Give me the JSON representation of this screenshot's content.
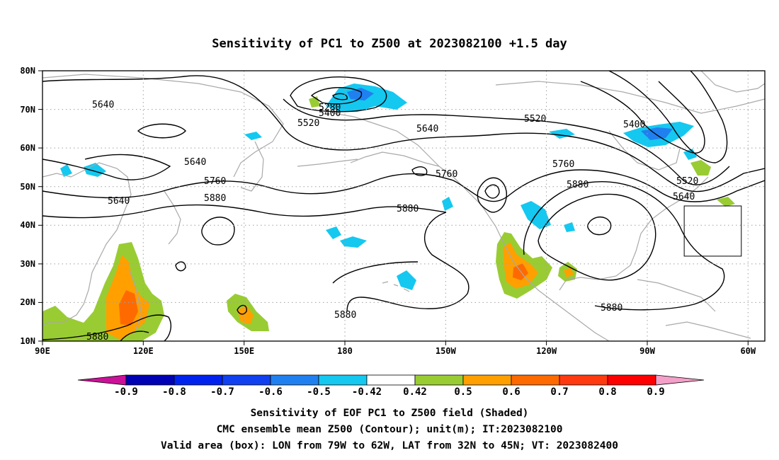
{
  "title": "Sensitivity of PC1 to Z500 at 2023082100 +1.5 day",
  "map": {
    "lat_labels": [
      "80N",
      "70N",
      "60N",
      "50N",
      "40N",
      "30N",
      "20N",
      "10N"
    ],
    "lon_labels": [
      "90E",
      "120E",
      "150E",
      "180",
      "150W",
      "120W",
      "90W",
      "60W"
    ],
    "lat_range": [
      10,
      80
    ],
    "lon_range": [
      90,
      305
    ],
    "valid_box": {
      "lon_min": -79,
      "lon_max": -62,
      "lat_min": 32,
      "lat_max": 45
    },
    "contour_labels": [
      "5640",
      "5280",
      "5400",
      "5520",
      "5640",
      "5520",
      "5400",
      "5640",
      "5760",
      "5640",
      "5880",
      "5760",
      "5880",
      "5880",
      "5760",
      "5880",
      "5520",
      "5640",
      "5880",
      "5880"
    ]
  },
  "colorbar": {
    "labels": [
      "-0.9",
      "-0.8",
      "-0.7",
      "-0.6",
      "-0.5",
      "-0.42",
      "0.42",
      "0.5",
      "0.6",
      "0.7",
      "0.8",
      "0.9"
    ],
    "colors": [
      "#cc1199",
      "#0000b4",
      "#0022ee",
      "#1040f0",
      "#2080f0",
      "#14c8f0",
      "#ffffff",
      "#99cc33",
      "#ffa000",
      "#ff6a00",
      "#ff3a10",
      "#ff0000",
      "#f4a0c8"
    ]
  },
  "caption": {
    "line1": "Sensitivity of EOF PC1 to Z500 field (Shaded)",
    "line2": "CMC ensemble mean Z500 (Contour); unit(m); IT:2023082100",
    "line3": "Valid area (box): LON from 79W to 62W, LAT from 32N to 45N; VT: 2023082400"
  }
}
